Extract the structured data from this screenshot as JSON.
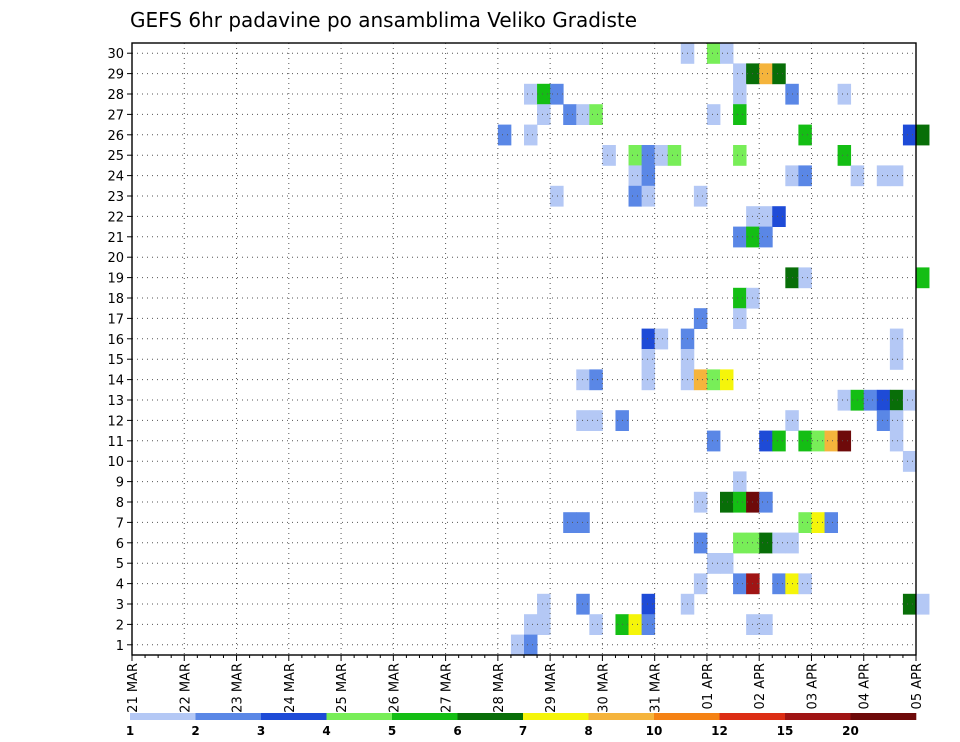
{
  "chart_data": {
    "type": "heatmap",
    "title": "GEFS 6hr padavine po ansamblima Veliko Gradiste",
    "y_ticks": [
      "1",
      "2",
      "3",
      "4",
      "5",
      "6",
      "7",
      "8",
      "9",
      "10",
      "11",
      "12",
      "13",
      "14",
      "15",
      "16",
      "17",
      "18",
      "19",
      "20",
      "21",
      "22",
      "23",
      "24",
      "25",
      "26",
      "27",
      "28",
      "29",
      "30"
    ],
    "ylim": [
      0.5,
      30.5
    ],
    "x_ticks": [
      "21 MAR",
      "22 MAR",
      "23 MAR",
      "24 MAR",
      "25 MAR",
      "26 MAR",
      "27 MAR",
      "28 MAR",
      "29 MAR",
      "30 MAR",
      "31 MAR",
      "01 APR",
      "02 APR",
      "03 APR",
      "04 APR",
      "05 APR"
    ],
    "x_steps_per_day": 4,
    "grid": true,
    "colorbar": {
      "labels": [
        "1",
        "2",
        "3",
        "4",
        "5",
        "6",
        "7",
        "8",
        "10",
        "12",
        "15",
        "20"
      ],
      "colors": [
        "#b4c8f5",
        "#5a87e6",
        "#1e4bd7",
        "#78ee58",
        "#14be14",
        "#086e08",
        "#f5f50a",
        "#f5b43c",
        "#f58214",
        "#dc2d14",
        "#a01414",
        "#6e0a0a"
      ]
    },
    "cells": [
      [
        30,
        42,
        1
      ],
      [
        30,
        44,
        4
      ],
      [
        30,
        45,
        1
      ],
      [
        29,
        46,
        1
      ],
      [
        29,
        47,
        6
      ],
      [
        29,
        48,
        8
      ],
      [
        29,
        49,
        6
      ],
      [
        28,
        30,
        1
      ],
      [
        28,
        31,
        5
      ],
      [
        28,
        32,
        2
      ],
      [
        28,
        46,
        1
      ],
      [
        28,
        50,
        2
      ],
      [
        28,
        54,
        1
      ],
      [
        27,
        31,
        1
      ],
      [
        27,
        33,
        2
      ],
      [
        27,
        34,
        1
      ],
      [
        27,
        35,
        4
      ],
      [
        27,
        44,
        1
      ],
      [
        27,
        46,
        5
      ],
      [
        26,
        28,
        2
      ],
      [
        26,
        30,
        1
      ],
      [
        26,
        51,
        5
      ],
      [
        26,
        59,
        3
      ],
      [
        26,
        60,
        6
      ],
      [
        25,
        36,
        1
      ],
      [
        25,
        38,
        4
      ],
      [
        25,
        39,
        2
      ],
      [
        25,
        40,
        1
      ],
      [
        25,
        41,
        4
      ],
      [
        25,
        46,
        4
      ],
      [
        25,
        54,
        5
      ],
      [
        24,
        38,
        1
      ],
      [
        24,
        39,
        2
      ],
      [
        24,
        50,
        1
      ],
      [
        24,
        51,
        2
      ],
      [
        24,
        55,
        1
      ],
      [
        24,
        57,
        1
      ],
      [
        24,
        58,
        1
      ],
      [
        23,
        32,
        1
      ],
      [
        23,
        38,
        2
      ],
      [
        23,
        39,
        1
      ],
      [
        23,
        43,
        1
      ],
      [
        22,
        47,
        1
      ],
      [
        22,
        48,
        1
      ],
      [
        22,
        49,
        3
      ],
      [
        21,
        46,
        2
      ],
      [
        21,
        47,
        5
      ],
      [
        21,
        48,
        2
      ],
      [
        19,
        50,
        6
      ],
      [
        19,
        51,
        1
      ],
      [
        19,
        60,
        5
      ],
      [
        18,
        46,
        5
      ],
      [
        18,
        47,
        1
      ],
      [
        17,
        43,
        2
      ],
      [
        17,
        46,
        1
      ],
      [
        16,
        39,
        3
      ],
      [
        16,
        40,
        1
      ],
      [
        16,
        42,
        2
      ],
      [
        16,
        58,
        1
      ],
      [
        15,
        39,
        1
      ],
      [
        15,
        42,
        1
      ],
      [
        15,
        58,
        1
      ],
      [
        14,
        34,
        1
      ],
      [
        14,
        35,
        2
      ],
      [
        14,
        39,
        1
      ],
      [
        14,
        42,
        1
      ],
      [
        14,
        43,
        8
      ],
      [
        14,
        44,
        4
      ],
      [
        14,
        45,
        7
      ],
      [
        13,
        54,
        1
      ],
      [
        13,
        55,
        5
      ],
      [
        13,
        56,
        2
      ],
      [
        13,
        57,
        3
      ],
      [
        13,
        58,
        6
      ],
      [
        13,
        59,
        1
      ],
      [
        12,
        34,
        1
      ],
      [
        12,
        35,
        1
      ],
      [
        12,
        37,
        2
      ],
      [
        12,
        50,
        1
      ],
      [
        12,
        57,
        2
      ],
      [
        12,
        58,
        1
      ],
      [
        11,
        44,
        2
      ],
      [
        11,
        48,
        3
      ],
      [
        11,
        49,
        5
      ],
      [
        11,
        51,
        5
      ],
      [
        11,
        52,
        4
      ],
      [
        11,
        53,
        8
      ],
      [
        11,
        54,
        12
      ],
      [
        11,
        58,
        1
      ],
      [
        10,
        59,
        1
      ],
      [
        9,
        46,
        1
      ],
      [
        8,
        43,
        1
      ],
      [
        8,
        45,
        6
      ],
      [
        8,
        46,
        5
      ],
      [
        8,
        47,
        12
      ],
      [
        8,
        48,
        2
      ],
      [
        7,
        33,
        2
      ],
      [
        7,
        34,
        2
      ],
      [
        7,
        51,
        4
      ],
      [
        7,
        52,
        7
      ],
      [
        7,
        53,
        2
      ],
      [
        6,
        43,
        2
      ],
      [
        6,
        46,
        4
      ],
      [
        6,
        47,
        4
      ],
      [
        6,
        48,
        6
      ],
      [
        6,
        49,
        1
      ],
      [
        6,
        50,
        1
      ],
      [
        5,
        44,
        1
      ],
      [
        5,
        45,
        1
      ],
      [
        4,
        43,
        1
      ],
      [
        4,
        46,
        2
      ],
      [
        4,
        47,
        11
      ],
      [
        4,
        49,
        2
      ],
      [
        4,
        50,
        7
      ],
      [
        4,
        51,
        1
      ],
      [
        3,
        31,
        1
      ],
      [
        3,
        34,
        2
      ],
      [
        3,
        39,
        3
      ],
      [
        3,
        42,
        1
      ],
      [
        3,
        59,
        6
      ],
      [
        3,
        60,
        1
      ],
      [
        2,
        30,
        1
      ],
      [
        2,
        31,
        1
      ],
      [
        2,
        35,
        1
      ],
      [
        2,
        37,
        5
      ],
      [
        2,
        38,
        7
      ],
      [
        2,
        39,
        2
      ],
      [
        2,
        47,
        1
      ],
      [
        2,
        48,
        1
      ],
      [
        1,
        29,
        1
      ],
      [
        1,
        30,
        2
      ]
    ]
  }
}
